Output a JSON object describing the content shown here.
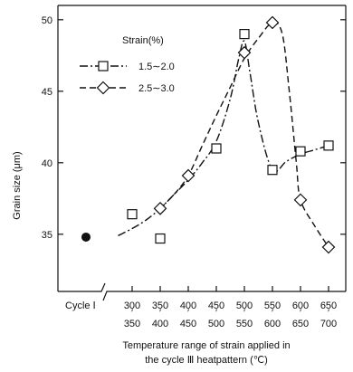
{
  "chart_data": {
    "type": "line",
    "ylabel": "Grain size (μm)",
    "xlabel": [
      "Temperature range of strain applied in",
      "the cycle Ⅲ heatpattern (℃)"
    ],
    "ylim": [
      31,
      51
    ],
    "yticks": [
      35,
      40,
      45,
      50
    ],
    "categories": [
      {
        "top": "300",
        "bottom": "350"
      },
      {
        "top": "350",
        "bottom": "400"
      },
      {
        "top": "400",
        "bottom": "450"
      },
      {
        "top": "450",
        "bottom": "500"
      },
      {
        "top": "500",
        "bottom": "550"
      },
      {
        "top": "550",
        "bottom": "600"
      },
      {
        "top": "600",
        "bottom": "650"
      },
      {
        "top": "650",
        "bottom": "700"
      }
    ],
    "cycle_label": "Cycle Ⅰ",
    "cycle_point": 34.8,
    "legend_title": "Strain(%)",
    "series": [
      {
        "name": "1.5∼2.0",
        "marker": "square",
        "dash": "dashdot",
        "points": [
          36.4,
          34.7,
          null,
          41.0,
          49.0,
          39.5,
          40.8,
          41.2
        ],
        "curve": [
          [
            -0.5,
            34.9
          ],
          [
            0,
            35.4
          ],
          [
            0.5,
            36.0
          ],
          [
            1,
            36.8
          ],
          [
            1.5,
            37.8
          ],
          [
            2,
            38.8
          ],
          [
            2.5,
            40.0
          ],
          [
            3,
            41.5
          ],
          [
            3.5,
            44.5
          ],
          [
            3.8,
            47.3
          ],
          [
            4,
            48.5
          ],
          [
            4.2,
            46.3
          ],
          [
            4.5,
            42.8
          ],
          [
            5,
            39.5
          ],
          [
            5.5,
            40.1
          ],
          [
            6,
            40.6
          ],
          [
            6.5,
            40.9
          ],
          [
            7,
            41.2
          ]
        ]
      },
      {
        "name": "2.5∼3.0",
        "marker": "diamond",
        "dash": "dashed",
        "points": [
          null,
          36.8,
          39.1,
          null,
          47.7,
          49.8,
          37.4,
          34.1
        ],
        "curve": [
          [
            1,
            36.8
          ],
          [
            1.5,
            37.8
          ],
          [
            2,
            39.1
          ],
          [
            2.5,
            41.2
          ],
          [
            3,
            43.3
          ],
          [
            3.5,
            45.3
          ],
          [
            4,
            47.3
          ],
          [
            4.5,
            48.7
          ],
          [
            5,
            49.8
          ],
          [
            5.35,
            49.0
          ],
          [
            5.6,
            45.0
          ],
          [
            5.85,
            40.0
          ],
          [
            6,
            37.4
          ],
          [
            6.5,
            35.6
          ],
          [
            7,
            34.1
          ]
        ]
      }
    ]
  }
}
